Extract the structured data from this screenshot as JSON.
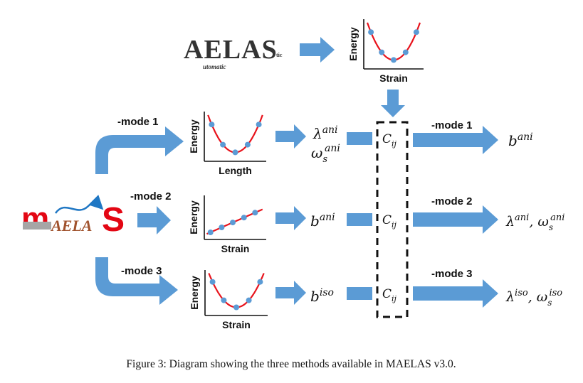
{
  "aelas_logo": {
    "main": "AELAS",
    "sub": "utomatic",
    "suffix": "tic"
  },
  "maelas_logo": {
    "left": "m",
    "middle": "AELA",
    "right": "S"
  },
  "plots": {
    "top": {
      "ylabel": "Energy",
      "xlabel": "Strain"
    },
    "mode1": {
      "ylabel": "Energy",
      "xlabel": "Length"
    },
    "mode2": {
      "ylabel": "Energy",
      "xlabel": "Strain"
    },
    "mode3": {
      "ylabel": "Energy",
      "xlabel": "Strain"
    }
  },
  "modes": {
    "mode1": {
      "label": "-mode 1",
      "out_label": "-mode 1"
    },
    "mode2": {
      "label": "-mode 2",
      "out_label": "-mode 2"
    },
    "mode3": {
      "label": "-mode 3",
      "out_label": "-mode 3"
    }
  },
  "quantities": {
    "mode1_mid": {
      "line1": "λ",
      "line1_sup": "ani",
      "line2": "ω",
      "line2_sub": "s",
      "line2_sup": "ani"
    },
    "mode2_mid": {
      "base": "b",
      "sup": "ani"
    },
    "mode3_mid": {
      "base": "b",
      "sup": "iso"
    },
    "mode1_out": {
      "base": "b",
      "sup": "ani"
    },
    "mode2_out": {
      "a": "λ",
      "a_sup": "ani",
      "sep": ", ",
      "b": "ω",
      "b_sub": "s",
      "b_sup": "ani"
    },
    "mode3_out": {
      "a": "λ",
      "a_sup": "iso",
      "sep": ", ",
      "b": "ω",
      "b_sub": "s",
      "b_sup": "iso"
    }
  },
  "cij": {
    "base": "C",
    "sub": "ij"
  },
  "caption": "Figure 3: Diagram showing the three methods available in MAELAS v3.0.",
  "colors": {
    "arrow": "#5b9bd5",
    "curve": "#e8131c",
    "point": "#5b9bd5",
    "maelas_red": "#e30613",
    "maelas_gray": "#a6a6a6",
    "maelas_brown": "#a0522d",
    "maelas_blue": "#1f77c4"
  }
}
